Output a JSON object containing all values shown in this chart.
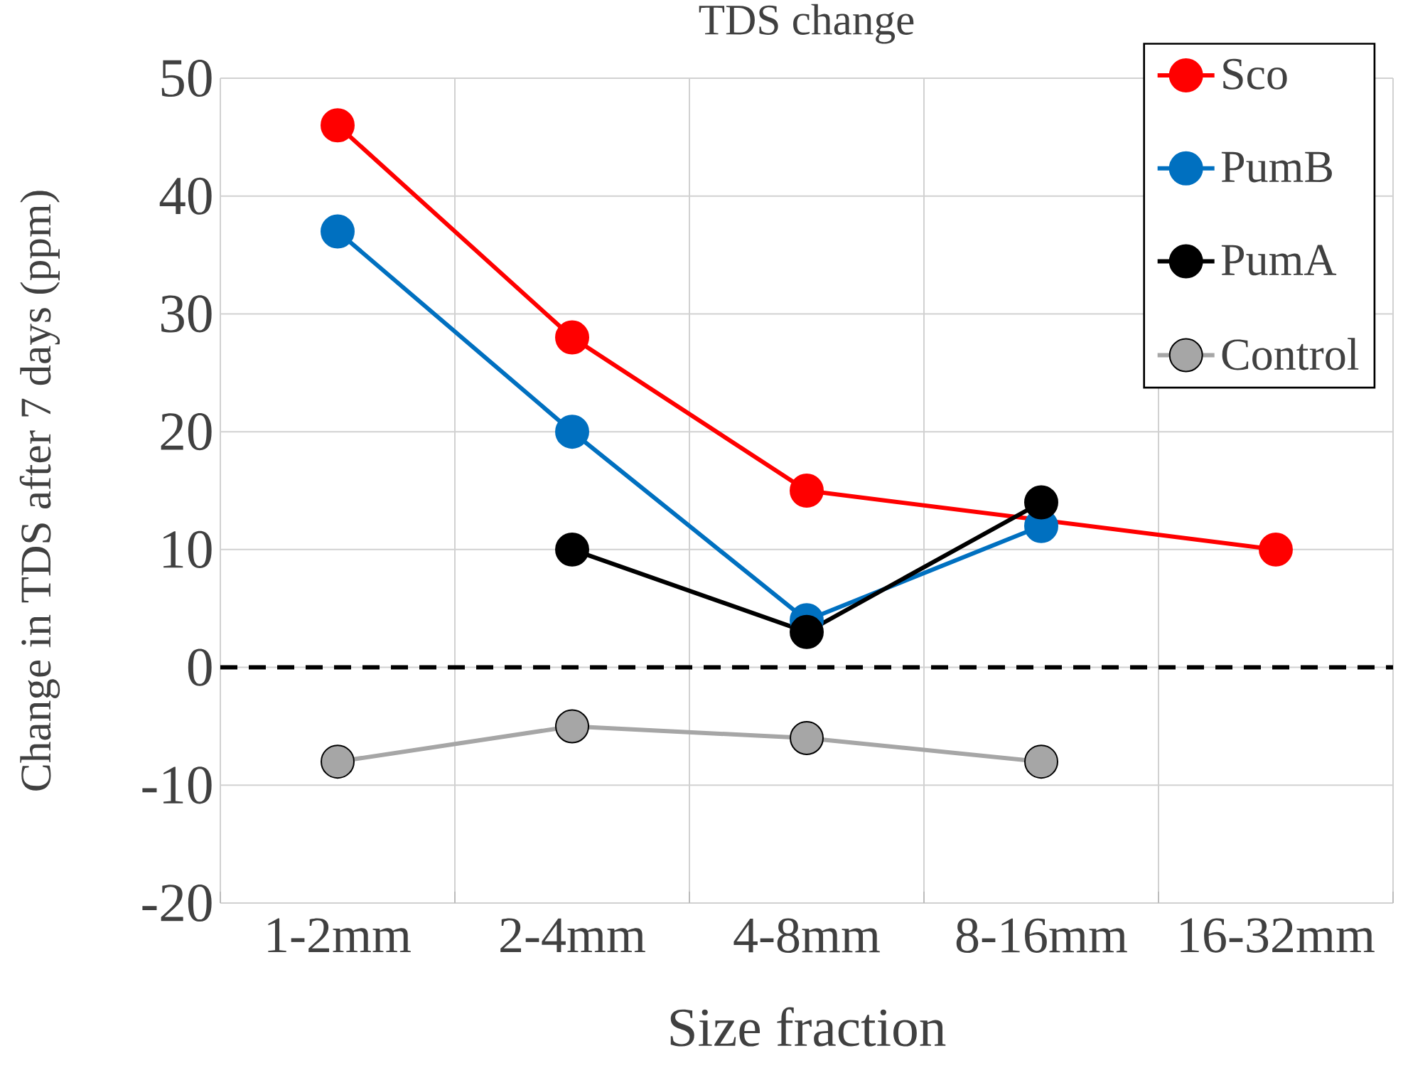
{
  "chart_data": {
    "type": "line",
    "title": "TDS change",
    "xlabel": "Size fraction",
    "ylabel": "Change  in TDS after 7 days (ppm)",
    "categories": [
      "1-2mm",
      "2-4mm",
      "4-8mm",
      "8-16mm",
      "16-32mm"
    ],
    "series": [
      {
        "name": "Sco",
        "color": "#ff0000",
        "values": [
          46,
          28,
          15,
          null,
          10
        ]
      },
      {
        "name": "PumB",
        "color": "#0070c0",
        "values": [
          37,
          20,
          4,
          12,
          null
        ]
      },
      {
        "name": "PumA",
        "color": "#000000",
        "values": [
          null,
          10,
          3,
          14,
          null
        ]
      },
      {
        "name": "Control",
        "color": "#a6a6a6",
        "values": [
          -8,
          -5,
          -6,
          -8,
          null
        ]
      }
    ],
    "ylim": [
      -20,
      50
    ],
    "yticks": [
      -20,
      -10,
      0,
      10,
      20,
      30,
      40,
      50
    ],
    "ref_lines": [
      {
        "axis": "y",
        "value": 0,
        "color": "#000000",
        "line_style": "dashed"
      }
    ],
    "grid": true,
    "legend": "top right",
    "marker": "circle",
    "line_style": "solid"
  }
}
